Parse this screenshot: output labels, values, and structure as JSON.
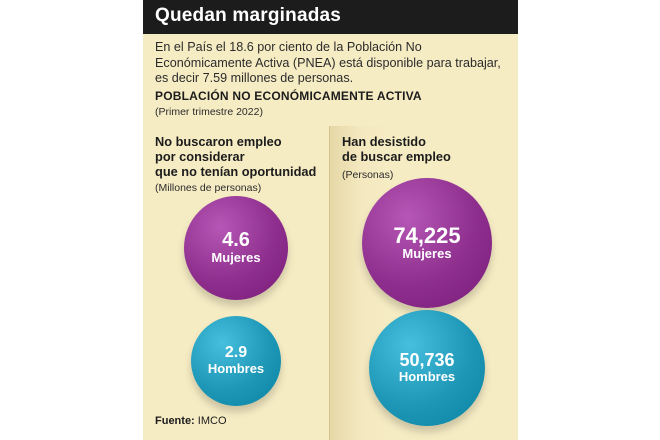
{
  "title": "Quedan marginadas",
  "intro": "En el País el 18.6 por ciento de la Población No Económicamente Activa (PNEA) está disponible para trabajar, es decir 7.59 millones de personas.",
  "section_title": "POBLACIÓN NO ECONÓMICAMENTE ACTIVA",
  "section_sub": "(Primer trimestre 2022)",
  "left": {
    "heading": [
      "No buscaron empleo",
      "por considerar",
      "que no tenían oportunidad"
    ],
    "unit": "(Millones de personas)"
  },
  "right": {
    "heading": [
      "Han desistido",
      "de buscar empleo"
    ],
    "unit": "(Personas)"
  },
  "source_label": "Fuente:",
  "source_value": "IMCO",
  "colors": {
    "mujeres": "#8e2f8e",
    "hombres": "#1d97b5",
    "panel": "#f6ecc4",
    "title_bar": "#1c1c1c"
  },
  "chart_data": [
    {
      "type": "bubble",
      "categories": [
        "Mujeres",
        "Hombres"
      ],
      "values": [
        4.6,
        2.9
      ],
      "value_labels": [
        "4.6",
        "2.9"
      ]
    },
    {
      "type": "bubble",
      "categories": [
        "Mujeres",
        "Hombres"
      ],
      "values": [
        74225,
        50736
      ],
      "value_labels": [
        "74,225",
        "50,736"
      ]
    }
  ]
}
